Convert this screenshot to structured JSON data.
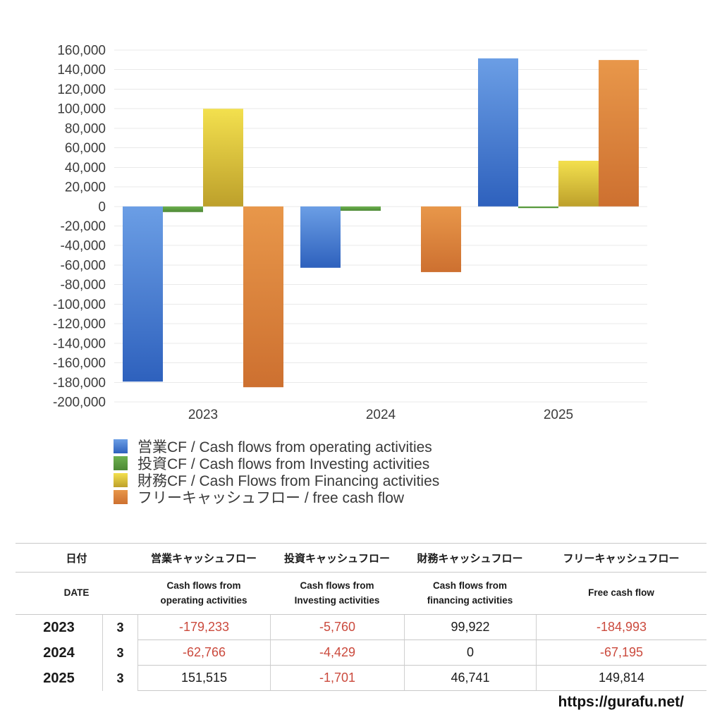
{
  "page": {
    "footer_url": "https://gurafu.net/"
  },
  "chart_data": {
    "type": "bar",
    "title": "",
    "xlabel": "",
    "ylabel": "",
    "categories": [
      "2023",
      "2024",
      "2025"
    ],
    "series": [
      {
        "key": "operating",
        "name": "営業CF / Cash flows from operating activities",
        "values": [
          -179233,
          -62766,
          151515
        ],
        "color_top": "#6B9EE5",
        "color_bottom": "#2E61BD"
      },
      {
        "key": "investing",
        "name": "投資CF / Cash flows from Investing activities",
        "values": [
          -5760,
          -4429,
          -1701
        ],
        "color_top": "#6DB14F",
        "color_bottom": "#4D8935"
      },
      {
        "key": "financing",
        "name": "財務CF / Cash Flows from Financing activities",
        "values": [
          99922,
          0,
          46741
        ],
        "color_top": "#F3E04E",
        "color_bottom": "#BDA02B"
      },
      {
        "key": "free_cash_flow",
        "name": "フリーキャッシュフロー / free cash flow",
        "values": [
          -184993,
          -67195,
          149814
        ],
        "color_top": "#E8974A",
        "color_bottom": "#CD7030"
      }
    ],
    "ylim": [
      -200000,
      160000
    ],
    "ytick_step": 20000,
    "grid": true,
    "gridline_color": "#e9e9e9",
    "legend_position": "bottom"
  },
  "table": {
    "header_jp": {
      "date": "日付",
      "operating": "営業キャッシュフロー",
      "investing": "投資キャッシュフロー",
      "financing": "財務キャッシュフロー",
      "free": "フリーキャッシュフロー"
    },
    "header_en": {
      "date": "DATE",
      "operating": "Cash flows from\noperating activities",
      "investing": "Cash flows from\nInvesting activities",
      "financing": "Cash flows from\nfinancing activities",
      "free": "Free cash flow"
    },
    "rows": [
      {
        "year": "2023",
        "month": "3",
        "operating": "-179,233",
        "investing": "-5,760",
        "financing": "99,922",
        "free": "-184,993"
      },
      {
        "year": "2024",
        "month": "3",
        "operating": "-62,766",
        "investing": "-4,429",
        "financing": "0",
        "free": "-67,195"
      },
      {
        "year": "2025",
        "month": "3",
        "operating": "151,515",
        "investing": "-1,701",
        "financing": "46,741",
        "free": "149,814"
      }
    ]
  }
}
